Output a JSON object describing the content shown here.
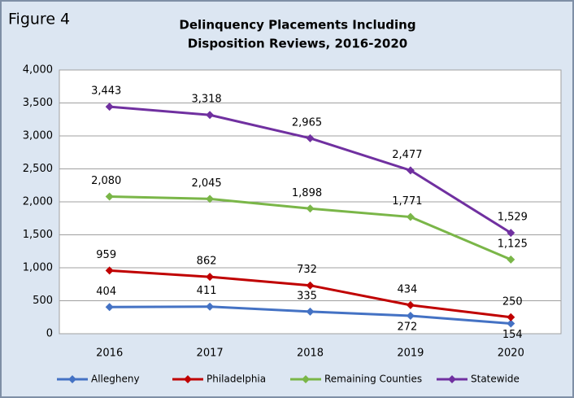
{
  "chart_data": {
    "type": "line",
    "annotation": "Figure 4",
    "title": [
      "Delinquency Placements Including",
      "Disposition Reviews, 2016-2020"
    ],
    "categories": [
      "2016",
      "2017",
      "2018",
      "2019",
      "2020"
    ],
    "series": [
      {
        "name": "Allegheny",
        "color": "#4472c4",
        "values": [
          404,
          411,
          335,
          272,
          154
        ],
        "value_labels": [
          "404",
          "411",
          "335",
          "272",
          "154"
        ]
      },
      {
        "name": "Philadelphia",
        "color": "#c00000",
        "values": [
          959,
          862,
          732,
          434,
          250
        ],
        "value_labels": [
          "959",
          "862",
          "732",
          "434",
          "250"
        ]
      },
      {
        "name": "Remaining Counties",
        "color": "#7ab648",
        "values": [
          2080,
          2045,
          1898,
          1771,
          1125
        ],
        "value_labels": [
          "2,080",
          "2,045",
          "1,898",
          "1,771",
          "1,125"
        ]
      },
      {
        "name": "Statewide",
        "color": "#7030a0",
        "values": [
          3443,
          3318,
          2965,
          2477,
          1529
        ],
        "value_labels": [
          "3,443",
          "3,318",
          "2,965",
          "2,477",
          "1,529"
        ]
      }
    ],
    "ylim": [
      0,
      4000
    ],
    "yticks": [
      0,
      500,
      {
        "value": 1000,
        "label": "1,000"
      },
      {
        "value": 1500,
        "label": "1,500"
      },
      {
        "value": 2000,
        "label": "2,000"
      },
      {
        "value": 2500,
        "label": "2,500"
      },
      {
        "value": 3000,
        "label": "3,000"
      },
      {
        "value": 3500,
        "label": "3,500"
      },
      {
        "value": 4000,
        "label": "4,000"
      }
    ],
    "grid": true,
    "legend": "bottom"
  }
}
